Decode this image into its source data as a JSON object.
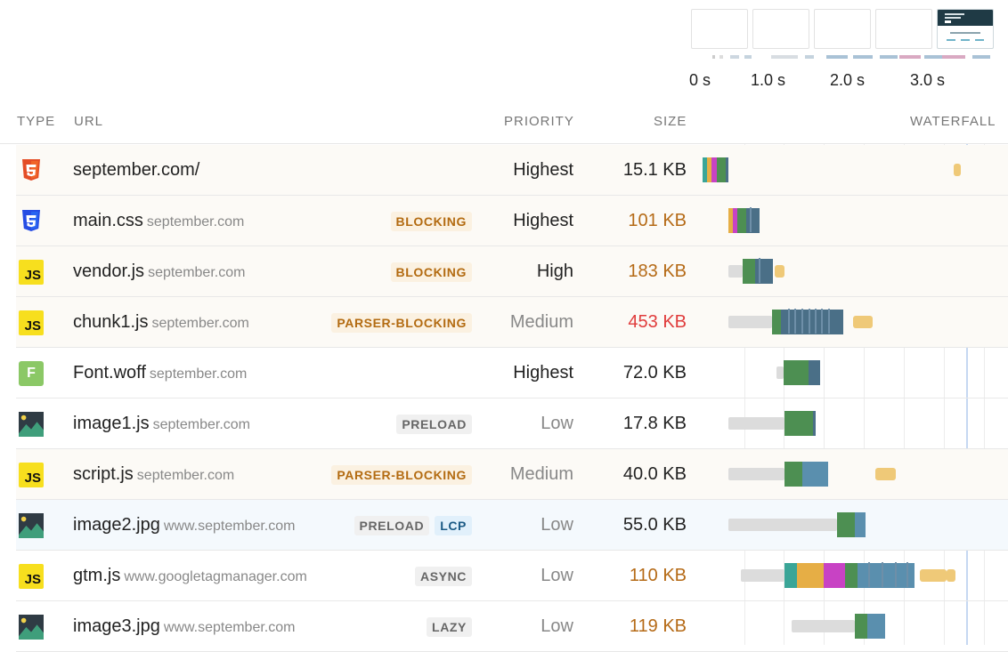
{
  "filmstrip": {
    "time_labels": [
      "0 s",
      "1.0 s",
      "2.0 s",
      "3.0 s"
    ]
  },
  "columns": {
    "type": "TYPE",
    "url": "URL",
    "priority": "PRIORITY",
    "size": "SIZE",
    "waterfall": "WATERFALL"
  },
  "colors": {
    "connect_teal": "#3aa597",
    "ssl_purple": "#c842c4",
    "dns_orange": "#e6ae45",
    "download_green": "#4d8f52",
    "download_blue": "#5a8fae",
    "download_dark_blue": "#4a6f87",
    "waiting_gray": "#dcdcdc",
    "late_orange": "#efc978"
  },
  "rows": [
    {
      "icon": "html5-icon",
      "file": "september.com/",
      "domain": "",
      "badges": [],
      "priority": "Highest",
      "size": "15.1 KB",
      "size_level": "normal"
    },
    {
      "icon": "css3-icon",
      "file": "main.css",
      "domain": "september.com",
      "badges": [
        "BLOCKING"
      ],
      "priority": "Highest",
      "size": "101 KB",
      "size_level": "warn"
    },
    {
      "icon": "js-icon",
      "file": "vendor.js",
      "domain": "september.com",
      "badges": [
        "BLOCKING"
      ],
      "priority": "High",
      "size": "183 KB",
      "size_level": "warn"
    },
    {
      "icon": "js-icon",
      "file": "chunk1.js",
      "domain": "september.com",
      "badges": [
        "PARSER-BLOCKING"
      ],
      "priority": "Medium",
      "size": "453 KB",
      "size_level": "bad"
    },
    {
      "icon": "font-icon",
      "icon_letter": "F",
      "file": "Font.woff",
      "domain": "september.com",
      "badges": [],
      "priority": "Highest",
      "size": "72.0 KB",
      "size_level": "normal"
    },
    {
      "icon": "image-icon",
      "file": "image1.js",
      "domain": "september.com",
      "badges": [
        "PRELOAD"
      ],
      "priority": "Low",
      "size": "17.8 KB",
      "size_level": "normal"
    },
    {
      "icon": "js-icon",
      "file": "script.js",
      "domain": "september.com",
      "badges": [
        "PARSER-BLOCKING"
      ],
      "priority": "Medium",
      "size": "40.0 KB",
      "size_level": "normal"
    },
    {
      "icon": "image-icon",
      "file": "image2.jpg",
      "domain": "www.september.com",
      "badges": [
        "PRELOAD",
        "LCP"
      ],
      "priority": "Low",
      "size": "55.0 KB",
      "size_level": "normal"
    },
    {
      "icon": "js-icon",
      "file": "gtm.js",
      "domain": "www.googletagmanager.com",
      "badges": [
        "ASYNC"
      ],
      "priority": "Low",
      "size": "110 KB",
      "size_level": "warn"
    },
    {
      "icon": "image-icon",
      "file": "image3.jpg",
      "domain": "www.september.com",
      "badges": [
        "LAZY"
      ],
      "priority": "Low",
      "size": "119 KB",
      "size_level": "warn"
    }
  ],
  "js_icon_label": "JS"
}
